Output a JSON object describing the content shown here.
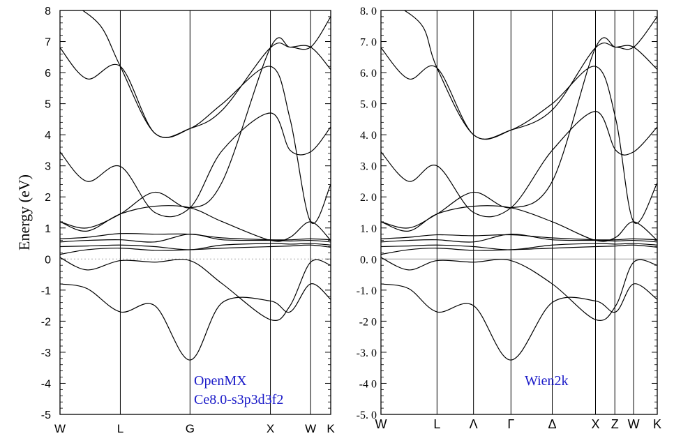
{
  "chart_data": [
    {
      "type": "line",
      "ylabel": "Energy (eV)",
      "ylim": [
        -5,
        8
      ],
      "y_ticks": [
        "8",
        "7",
        "6",
        "5",
        "4",
        "3",
        "2",
        "1",
        "0",
        "-1",
        "-2",
        "-3",
        "-4",
        "-5"
      ],
      "kpoint_labels": [
        "W",
        "L",
        "G",
        "X",
        "W",
        "K"
      ],
      "kpoint_pos": [
        0,
        0.2228,
        0.4802,
        0.7772,
        0.9257,
        1.0
      ],
      "annotation": [
        "OpenMX",
        "Ce8.0-s3p3d3f2"
      ],
      "fermi_level": 0,
      "series": [
        {
          "x": [
            0,
            0.1,
            0.2228,
            0.35,
            0.4802,
            0.6,
            0.7772,
            0.85,
            0.9257,
            1.0
          ],
          "y": [
            -0.8,
            -0.95,
            -1.7,
            -1.5,
            -3.25,
            -1.4,
            -1.35,
            -1.7,
            -0.8,
            -1.3
          ]
        },
        {
          "x": [
            0,
            0.1,
            0.2228,
            0.35,
            0.4802,
            0.6,
            0.7772,
            0.85,
            0.9257,
            1.0
          ],
          "y": [
            0.05,
            -0.35,
            -0.05,
            -0.1,
            -0.05,
            -0.8,
            -1.95,
            -1.5,
            -0.1,
            -0.2
          ]
        },
        {
          "x": [
            0,
            0.1,
            0.2228,
            0.35,
            0.4802,
            0.6,
            0.7772,
            0.85,
            0.9257,
            1.0
          ],
          "y": [
            0.15,
            0.3,
            0.35,
            0.28,
            0.3,
            0.35,
            0.4,
            0.42,
            0.45,
            0.38
          ]
        },
        {
          "x": [
            0,
            0.1,
            0.2228,
            0.35,
            0.4802,
            0.6,
            0.7772,
            0.85,
            0.9257,
            1.0
          ],
          "y": [
            0.4,
            0.42,
            0.45,
            0.4,
            0.3,
            0.45,
            0.5,
            0.48,
            0.5,
            0.45
          ]
        },
        {
          "x": [
            0,
            0.1,
            0.2228,
            0.35,
            0.4802,
            0.6,
            0.7772,
            0.85,
            0.9257,
            1.0
          ],
          "y": [
            0.55,
            0.6,
            0.62,
            0.55,
            0.8,
            0.62,
            0.6,
            0.58,
            0.6,
            0.55
          ]
        },
        {
          "x": [
            0,
            0.1,
            0.2228,
            0.35,
            0.4802,
            0.6,
            0.7772,
            0.85,
            0.9257,
            1.0
          ],
          "y": [
            0.65,
            0.7,
            0.82,
            0.8,
            0.8,
            0.68,
            0.62,
            0.62,
            0.65,
            0.62
          ]
        },
        {
          "x": [
            0,
            0.1,
            0.2228,
            0.35,
            0.4802,
            0.6,
            0.7772,
            0.85,
            0.9257,
            1.0
          ],
          "y": [
            1.2,
            0.9,
            1.45,
            1.7,
            1.65,
            1.2,
            0.6,
            0.7,
            1.2,
            0.6
          ]
        },
        {
          "x": [
            0,
            0.1,
            0.2228,
            0.35,
            0.4802,
            0.6,
            0.7772,
            0.85,
            0.9257,
            1.0
          ],
          "y": [
            1.2,
            1.0,
            1.45,
            2.15,
            1.65,
            2.5,
            6.8,
            6.82,
            6.82,
            6.1
          ]
        },
        {
          "x": [
            0,
            0.1,
            0.2228,
            0.35,
            0.4802,
            0.6,
            0.7772,
            0.85,
            0.9257,
            1.0
          ],
          "y": [
            3.45,
            2.5,
            2.98,
            1.5,
            1.65,
            3.5,
            4.7,
            3.5,
            3.45,
            4.25
          ]
        },
        {
          "x": [
            0,
            0.1,
            0.2228,
            0.35,
            0.4802,
            0.6,
            0.7772,
            0.85,
            0.9257,
            1.0
          ],
          "y": [
            6.8,
            5.8,
            6.2,
            4.05,
            4.2,
            5.0,
            6.2,
            4.5,
            1.2,
            2.4
          ]
        },
        {
          "x": [
            0.05,
            0.15,
            0.2228,
            0.35,
            0.4802,
            0.6,
            0.7772,
            0.85,
            0.9257,
            1.0
          ],
          "y": [
            8.2,
            7.5,
            6.2,
            4.05,
            4.2,
            4.8,
            6.8,
            6.82,
            6.82,
            7.8
          ]
        }
      ]
    },
    {
      "type": "line",
      "ylabel": "",
      "ylim": [
        -5,
        8
      ],
      "y_ticks": [
        "8. 0",
        "7. 0",
        "6. 0",
        "5. 0",
        "4. 0",
        "3. 0",
        "2. 0",
        "1. 0",
        "0. 0",
        "-1. 0",
        "-2 0",
        "-3. 0",
        "-4 0",
        "-5. 0"
      ],
      "kpoint_labels": [
        "W",
        "L",
        "Λ",
        "Γ",
        "Δ",
        "X",
        "Z",
        "W",
        "K"
      ],
      "kpoint_pos": [
        0,
        0.2029,
        0.335,
        0.4705,
        0.62,
        0.7765,
        0.8465,
        0.9145,
        1.0
      ],
      "annotation": [
        "Wien2k"
      ],
      "fermi_level": 0,
      "series": [
        {
          "x": [
            0,
            0.1,
            0.2029,
            0.335,
            0.4705,
            0.62,
            0.7765,
            0.85,
            0.9145,
            1.0
          ],
          "y": [
            -0.8,
            -0.95,
            -1.7,
            -1.5,
            -3.25,
            -1.4,
            -1.35,
            -1.7,
            -0.8,
            -1.3
          ]
        },
        {
          "x": [
            0,
            0.1,
            0.2029,
            0.335,
            0.4705,
            0.62,
            0.7765,
            0.85,
            0.9145,
            1.0
          ],
          "y": [
            0.05,
            -0.35,
            -0.05,
            -0.1,
            -0.05,
            -0.8,
            -1.95,
            -1.5,
            -0.1,
            -0.2
          ]
        },
        {
          "x": [
            0,
            0.1,
            0.2029,
            0.335,
            0.4705,
            0.62,
            0.7765,
            0.85,
            0.9145,
            1.0
          ],
          "y": [
            0.15,
            0.3,
            0.35,
            0.28,
            0.3,
            0.35,
            0.4,
            0.42,
            0.45,
            0.38
          ]
        },
        {
          "x": [
            0,
            0.1,
            0.2029,
            0.335,
            0.4705,
            0.62,
            0.7765,
            0.85,
            0.9145,
            1.0
          ],
          "y": [
            0.4,
            0.42,
            0.45,
            0.4,
            0.3,
            0.45,
            0.5,
            0.48,
            0.5,
            0.45
          ]
        },
        {
          "x": [
            0,
            0.1,
            0.2029,
            0.335,
            0.4705,
            0.62,
            0.7765,
            0.85,
            0.9145,
            1.0
          ],
          "y": [
            0.55,
            0.6,
            0.62,
            0.55,
            0.8,
            0.62,
            0.6,
            0.58,
            0.6,
            0.55
          ]
        },
        {
          "x": [
            0,
            0.1,
            0.2029,
            0.335,
            0.4705,
            0.62,
            0.7765,
            0.85,
            0.9145,
            1.0
          ],
          "y": [
            0.65,
            0.7,
            0.78,
            0.75,
            0.78,
            0.68,
            0.62,
            0.62,
            0.65,
            0.62
          ]
        },
        {
          "x": [
            0,
            0.1,
            0.2029,
            0.335,
            0.4705,
            0.62,
            0.7765,
            0.85,
            0.9145,
            1.0
          ],
          "y": [
            1.2,
            0.9,
            1.45,
            1.7,
            1.65,
            1.2,
            0.6,
            0.7,
            1.2,
            0.6
          ]
        },
        {
          "x": [
            0,
            0.1,
            0.2029,
            0.335,
            0.4705,
            0.62,
            0.7765,
            0.85,
            0.9145,
            1.0
          ],
          "y": [
            1.2,
            1.0,
            1.45,
            2.15,
            1.65,
            2.5,
            6.8,
            6.82,
            6.82,
            6.1
          ]
        },
        {
          "x": [
            0,
            0.1,
            0.2029,
            0.335,
            0.4705,
            0.62,
            0.7765,
            0.85,
            0.9145,
            1.0
          ],
          "y": [
            3.45,
            2.5,
            3.0,
            1.5,
            1.65,
            3.5,
            4.75,
            3.5,
            3.45,
            4.25
          ]
        },
        {
          "x": [
            0,
            0.1,
            0.2029,
            0.335,
            0.4705,
            0.62,
            0.7765,
            0.85,
            0.9145,
            1.0
          ],
          "y": [
            6.8,
            5.8,
            6.15,
            4.0,
            4.15,
            5.0,
            6.2,
            4.5,
            1.2,
            2.45
          ]
        },
        {
          "x": [
            0.05,
            0.15,
            0.2029,
            0.335,
            0.4705,
            0.62,
            0.7765,
            0.85,
            0.9145,
            1.0
          ],
          "y": [
            8.2,
            7.5,
            6.15,
            4.0,
            4.15,
            4.8,
            6.8,
            6.82,
            6.82,
            7.8
          ]
        }
      ]
    }
  ]
}
